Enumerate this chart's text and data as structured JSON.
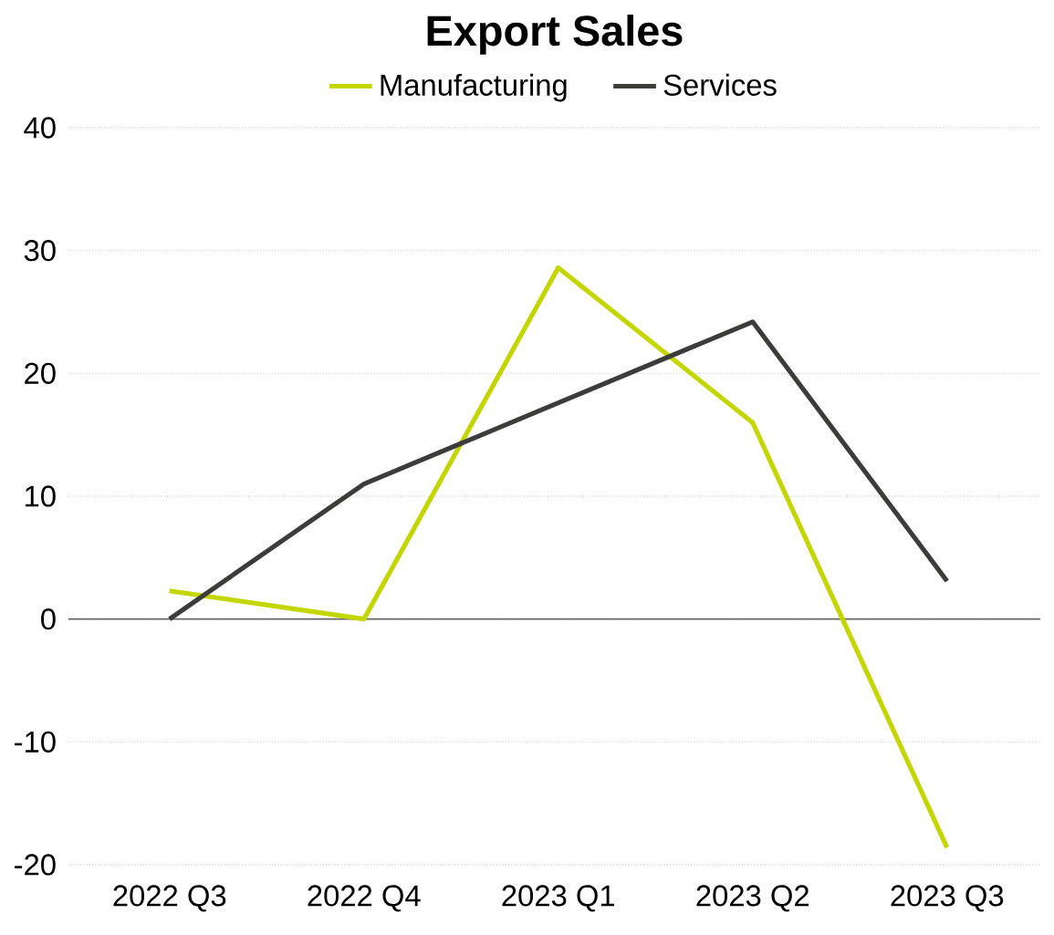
{
  "chart_data": {
    "type": "line",
    "title": "**Export Sales**",
    "categories": [
      "2022 Q3",
      "2022 Q4",
      "2023 Q1",
      "2023 Q2",
      "2023 Q3"
    ],
    "series": [
      {
        "name": "Manufacturing",
        "color": "#c4d600",
        "values": [
          2.3,
          0,
          28.6,
          16.0,
          -18.6
        ]
      },
      {
        "name": "Services",
        "color": "#3c3c3b",
        "values": [
          0,
          11.0,
          17.6,
          24.2,
          3.1
        ]
      }
    ],
    "ylim": [
      -20,
      40
    ],
    "yticks": [
      -20,
      -10,
      0,
      10,
      20,
      30,
      40
    ],
    "grid": "y",
    "legend": "top",
    "marker": "none",
    "line_style": "solid"
  }
}
